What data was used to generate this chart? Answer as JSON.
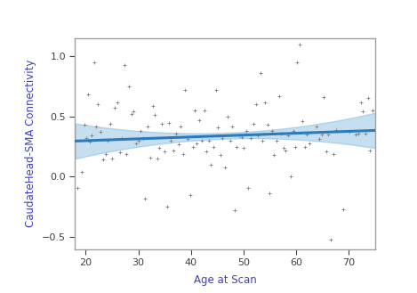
{
  "xlabel": "Age at Scan",
  "ylabel": "CaudateHead-SMA Connectivity",
  "xlim": [
    18,
    75
  ],
  "ylim": [
    -0.6,
    1.15
  ],
  "xticks": [
    20,
    30,
    40,
    50,
    60,
    70
  ],
  "yticks": [
    -0.5,
    0.0,
    0.5,
    1.0
  ],
  "scatter_color": "#808080",
  "line_color": "#2b7bba",
  "ci_color": "#5ba4d4",
  "ci_alpha": 0.35,
  "line_slope": 0.00155,
  "line_intercept": 0.268,
  "background_color": "#ffffff",
  "panel_border_color": "#a0a0a0",
  "axis_label_color": "#4040c0",
  "tick_label_color": "#404040",
  "axis_label_fontsize": 8.5,
  "tick_fontsize": 8,
  "scatter_points": [
    [
      18.5,
      -0.09
    ],
    [
      19.2,
      0.04
    ],
    [
      19.8,
      0.43
    ],
    [
      20.1,
      0.32
    ],
    [
      20.5,
      0.68
    ],
    [
      20.8,
      0.29
    ],
    [
      21.2,
      0.34
    ],
    [
      21.6,
      0.95
    ],
    [
      22.0,
      0.42
    ],
    [
      22.4,
      0.6
    ],
    [
      22.9,
      0.37
    ],
    [
      23.3,
      0.14
    ],
    [
      23.8,
      0.19
    ],
    [
      24.2,
      0.3
    ],
    [
      24.7,
      0.44
    ],
    [
      25.1,
      0.15
    ],
    [
      25.6,
      0.57
    ],
    [
      26.0,
      0.62
    ],
    [
      26.5,
      0.2
    ],
    [
      26.9,
      0.32
    ],
    [
      27.3,
      0.93
    ],
    [
      27.8,
      0.19
    ],
    [
      28.2,
      0.75
    ],
    [
      28.7,
      0.52
    ],
    [
      29.1,
      0.54
    ],
    [
      29.6,
      0.28
    ],
    [
      30.0,
      0.3
    ],
    [
      30.4,
      0.38
    ],
    [
      30.9,
      0.32
    ],
    [
      31.3,
      -0.18
    ],
    [
      31.8,
      0.42
    ],
    [
      32.2,
      0.16
    ],
    [
      32.7,
      0.59
    ],
    [
      33.1,
      0.51
    ],
    [
      33.6,
      0.15
    ],
    [
      34.0,
      0.24
    ],
    [
      34.5,
      0.44
    ],
    [
      34.9,
      0.21
    ],
    [
      35.4,
      -0.25
    ],
    [
      35.8,
      0.45
    ],
    [
      36.2,
      0.3
    ],
    [
      36.7,
      0.22
    ],
    [
      37.1,
      0.36
    ],
    [
      37.6,
      0.27
    ],
    [
      38.0,
      0.42
    ],
    [
      38.5,
      0.19
    ],
    [
      38.9,
      0.72
    ],
    [
      39.4,
      0.31
    ],
    [
      39.8,
      -0.15
    ],
    [
      40.3,
      0.25
    ],
    [
      40.7,
      0.55
    ],
    [
      41.1,
      0.28
    ],
    [
      41.6,
      0.47
    ],
    [
      42.0,
      0.3
    ],
    [
      42.5,
      0.55
    ],
    [
      42.9,
      0.21
    ],
    [
      43.4,
      0.3
    ],
    [
      43.8,
      0.1
    ],
    [
      44.3,
      0.25
    ],
    [
      44.7,
      0.72
    ],
    [
      45.1,
      0.41
    ],
    [
      45.6,
      0.18
    ],
    [
      46.0,
      0.32
    ],
    [
      46.5,
      0.08
    ],
    [
      46.9,
      0.5
    ],
    [
      47.4,
      0.3
    ],
    [
      47.8,
      0.42
    ],
    [
      48.3,
      -0.28
    ],
    [
      48.7,
      0.25
    ],
    [
      49.1,
      0.34
    ],
    [
      49.6,
      0.33
    ],
    [
      50.0,
      0.24
    ],
    [
      50.5,
      0.38
    ],
    [
      50.9,
      -0.09
    ],
    [
      51.4,
      0.32
    ],
    [
      51.8,
      0.44
    ],
    [
      52.3,
      0.6
    ],
    [
      52.7,
      0.34
    ],
    [
      53.2,
      0.86
    ],
    [
      53.6,
      0.3
    ],
    [
      54.0,
      0.62
    ],
    [
      54.5,
      0.43
    ],
    [
      54.9,
      -0.14
    ],
    [
      55.4,
      0.38
    ],
    [
      55.8,
      0.18
    ],
    [
      56.3,
      0.3
    ],
    [
      56.7,
      0.67
    ],
    [
      57.1,
      0.36
    ],
    [
      57.6,
      0.24
    ],
    [
      58.0,
      0.22
    ],
    [
      58.5,
      0.34
    ],
    [
      58.9,
      0.0
    ],
    [
      59.4,
      0.38
    ],
    [
      59.8,
      0.25
    ],
    [
      60.2,
      0.95
    ],
    [
      60.7,
      1.1
    ],
    [
      61.1,
      0.46
    ],
    [
      61.6,
      0.25
    ],
    [
      62.0,
      0.35
    ],
    [
      62.5,
      0.28
    ],
    [
      63.9,
      0.42
    ],
    [
      64.3,
      0.31
    ],
    [
      64.8,
      0.35
    ],
    [
      65.2,
      0.66
    ],
    [
      65.7,
      0.21
    ],
    [
      66.1,
      0.35
    ],
    [
      66.6,
      -0.52
    ],
    [
      67.0,
      0.19
    ],
    [
      67.5,
      0.39
    ],
    [
      68.9,
      -0.27
    ],
    [
      70.1,
      0.37
    ],
    [
      71.3,
      0.35
    ],
    [
      71.8,
      0.36
    ],
    [
      72.2,
      0.62
    ],
    [
      72.7,
      0.54
    ],
    [
      73.1,
      0.36
    ],
    [
      73.6,
      0.65
    ],
    [
      74.0,
      0.22
    ],
    [
      74.5,
      0.55
    ]
  ]
}
